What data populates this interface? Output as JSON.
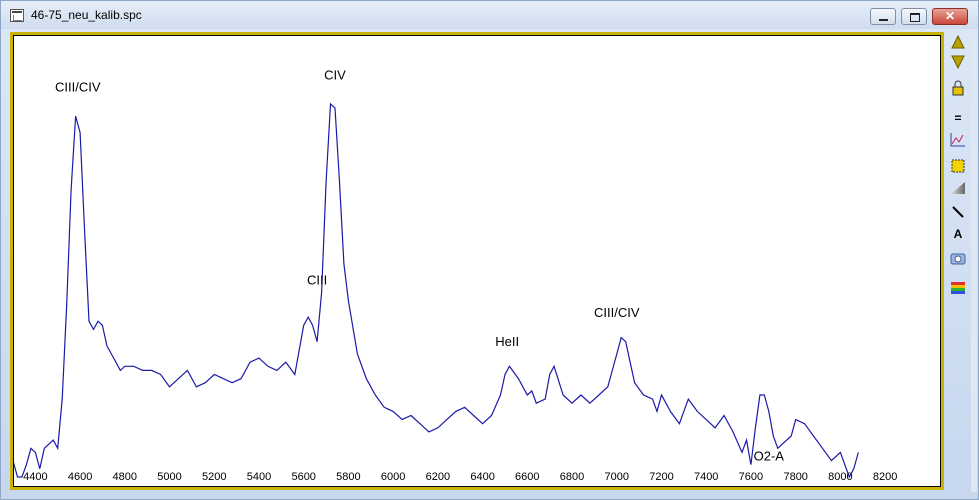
{
  "window": {
    "title": "46-75_neu_kalib.spc",
    "close_label": "✕"
  },
  "colors": {
    "frame_border": "#c8b400",
    "plot_bg": "#ffffff",
    "spectrum_line": "#1a1aa8"
  },
  "toolbar": {
    "icons": [
      "arrow-up-icon",
      "arrow-down-icon",
      "lock-icon",
      "equals-icon",
      "graph-icon",
      "select-box-icon",
      "gradient-icon",
      "line-tool-icon",
      "text-tool-icon",
      "camera-icon",
      "palette-icon"
    ],
    "text_tool_label": "A",
    "equals_label": "="
  },
  "chart_data": {
    "type": "line",
    "title": "",
    "xlabel": "",
    "ylabel": "",
    "xlim": [
      4300,
      8450
    ],
    "ylim": [
      0,
      1
    ],
    "grid": false,
    "x_ticks": [
      4400,
      4600,
      4800,
      5000,
      5200,
      5400,
      5600,
      5800,
      6000,
      6200,
      6400,
      6600,
      6800,
      7000,
      7200,
      7400,
      7600,
      7800,
      8000,
      8200
    ],
    "series": [
      {
        "x": [
          4300,
          4320,
          4340,
          4360,
          4380,
          4400,
          4420,
          4440,
          4460,
          4480,
          4500,
          4520,
          4540,
          4560,
          4580,
          4600,
          4620,
          4640,
          4660,
          4680,
          4700,
          4720,
          4740,
          4760,
          4780,
          4800,
          4840,
          4880,
          4920,
          4960,
          5000,
          5040,
          5080,
          5120,
          5160,
          5200,
          5240,
          5280,
          5320,
          5360,
          5400,
          5440,
          5480,
          5520,
          5560,
          5600,
          5620,
          5640,
          5660,
          5680,
          5700,
          5720,
          5740,
          5760,
          5780,
          5800,
          5840,
          5880,
          5920,
          5960,
          6000,
          6040,
          6080,
          6120,
          6160,
          6200,
          6240,
          6280,
          6320,
          6360,
          6400,
          6440,
          6480,
          6500,
          6520,
          6560,
          6600,
          6620,
          6640,
          6680,
          6700,
          6720,
          6760,
          6800,
          6840,
          6880,
          6920,
          6960,
          7000,
          7020,
          7040,
          7080,
          7120,
          7160,
          7180,
          7200,
          7240,
          7280,
          7320,
          7360,
          7400,
          7440,
          7480,
          7520,
          7560,
          7580,
          7600,
          7620,
          7640,
          7660,
          7680,
          7700,
          7720,
          7740,
          7760,
          7780,
          7800,
          7840,
          7880,
          7920,
          7960,
          8000,
          8020,
          8040,
          8060,
          8080
        ],
        "y": [
          0.04,
          0.0,
          0.0,
          0.03,
          0.07,
          0.06,
          0.02,
          0.07,
          0.08,
          0.09,
          0.07,
          0.19,
          0.42,
          0.7,
          0.88,
          0.84,
          0.6,
          0.38,
          0.36,
          0.38,
          0.37,
          0.32,
          0.3,
          0.28,
          0.26,
          0.27,
          0.27,
          0.26,
          0.26,
          0.25,
          0.22,
          0.24,
          0.26,
          0.22,
          0.23,
          0.25,
          0.24,
          0.23,
          0.24,
          0.28,
          0.29,
          0.27,
          0.26,
          0.28,
          0.25,
          0.37,
          0.39,
          0.37,
          0.33,
          0.45,
          0.72,
          0.91,
          0.9,
          0.72,
          0.52,
          0.43,
          0.3,
          0.24,
          0.2,
          0.17,
          0.16,
          0.14,
          0.15,
          0.13,
          0.11,
          0.12,
          0.14,
          0.16,
          0.17,
          0.15,
          0.13,
          0.15,
          0.2,
          0.25,
          0.27,
          0.24,
          0.2,
          0.21,
          0.18,
          0.19,
          0.25,
          0.27,
          0.2,
          0.18,
          0.2,
          0.18,
          0.2,
          0.22,
          0.3,
          0.34,
          0.33,
          0.23,
          0.2,
          0.19,
          0.16,
          0.2,
          0.16,
          0.13,
          0.19,
          0.16,
          0.14,
          0.12,
          0.15,
          0.11,
          0.06,
          0.09,
          0.03,
          0.12,
          0.2,
          0.2,
          0.16,
          0.1,
          0.07,
          0.08,
          0.09,
          0.1,
          0.14,
          0.13,
          0.1,
          0.07,
          0.04,
          0.06,
          0.03,
          0.0,
          0.02,
          0.06
        ]
      }
    ],
    "annotations": [
      {
        "text": "CIII/CIV",
        "x": 4590,
        "y": 0.94
      },
      {
        "text": "CIV",
        "x": 5740,
        "y": 0.97
      },
      {
        "text": "CIII",
        "x": 5660,
        "y": 0.47
      },
      {
        "text": "HeII",
        "x": 6510,
        "y": 0.32
      },
      {
        "text": "CIII/CIV",
        "x": 7000,
        "y": 0.39
      },
      {
        "text": "O2-A",
        "x": 7680,
        "y": 0.04
      }
    ]
  }
}
